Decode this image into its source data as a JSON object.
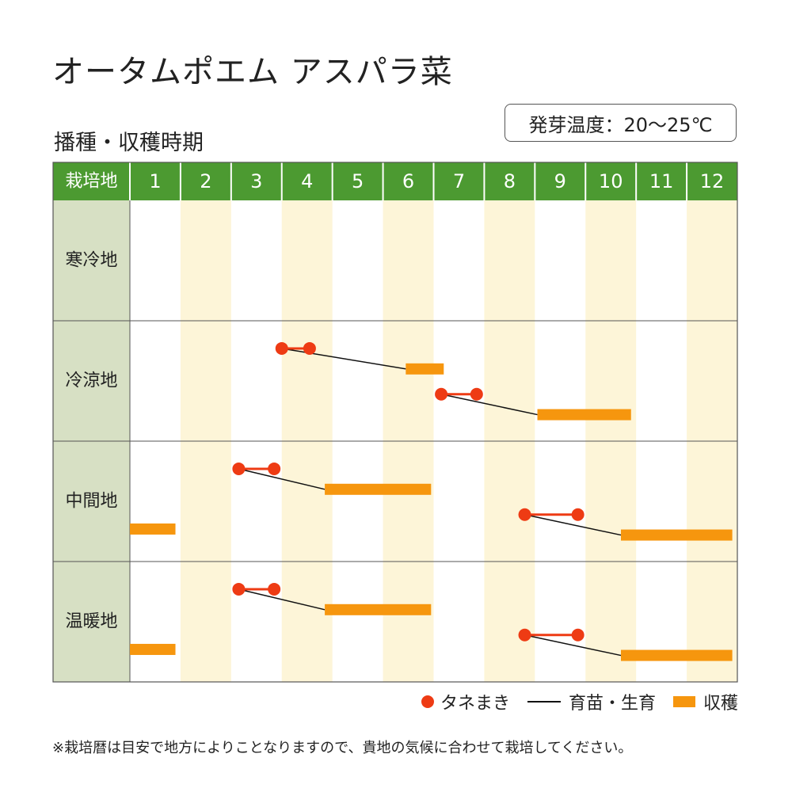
{
  "page": {
    "title": "オータムポエム アスパラ菜",
    "subtitle": "播種・収穫時期",
    "germination_temp": "発芽温度：20〜25℃",
    "footnote": "※栽培暦は目安で地方によりことなりますので、貴地の気候に合わせて栽培してください。"
  },
  "legend": {
    "sowing": "タネまき",
    "growing": "育苗・生育",
    "harvest": "収穫"
  },
  "colors": {
    "header_green": "#4c9a31",
    "region_column": "#d7e0c4",
    "stripe": "#fdf5d8",
    "sowing": "#ee3b14",
    "harvest": "#f6960e",
    "growing_line": "#111111",
    "grid": "#555555"
  },
  "chart_data": {
    "type": "table",
    "header_label": "栽培地",
    "months": [
      "1",
      "2",
      "3",
      "4",
      "5",
      "6",
      "7",
      "8",
      "9",
      "10",
      "11",
      "12"
    ],
    "regions": [
      {
        "name": "寒冷地",
        "plans": []
      },
      {
        "name": "冷涼地",
        "plans": [
          {
            "sowing": [
              4.0,
              4.55
            ],
            "harvest": [
              6.45,
              7.2
            ]
          },
          {
            "sowing": [
              7.15,
              7.85
            ],
            "harvest": [
              9.05,
              10.9
            ]
          }
        ]
      },
      {
        "name": "中間地",
        "plans": [
          {
            "sowing": [
              3.15,
              3.85
            ],
            "harvest": [
              4.85,
              6.95
            ],
            "prev_harvest": [
              1.0,
              1.9
            ]
          },
          {
            "sowing": [
              8.8,
              9.85
            ],
            "harvest": [
              10.7,
              12.9
            ]
          }
        ]
      },
      {
        "name": "温暖地",
        "plans": [
          {
            "sowing": [
              3.15,
              3.85
            ],
            "harvest": [
              4.85,
              6.95
            ],
            "prev_harvest": [
              1.0,
              1.9
            ]
          },
          {
            "sowing": [
              8.8,
              9.85
            ],
            "harvest": [
              10.7,
              12.9
            ]
          }
        ]
      }
    ]
  }
}
